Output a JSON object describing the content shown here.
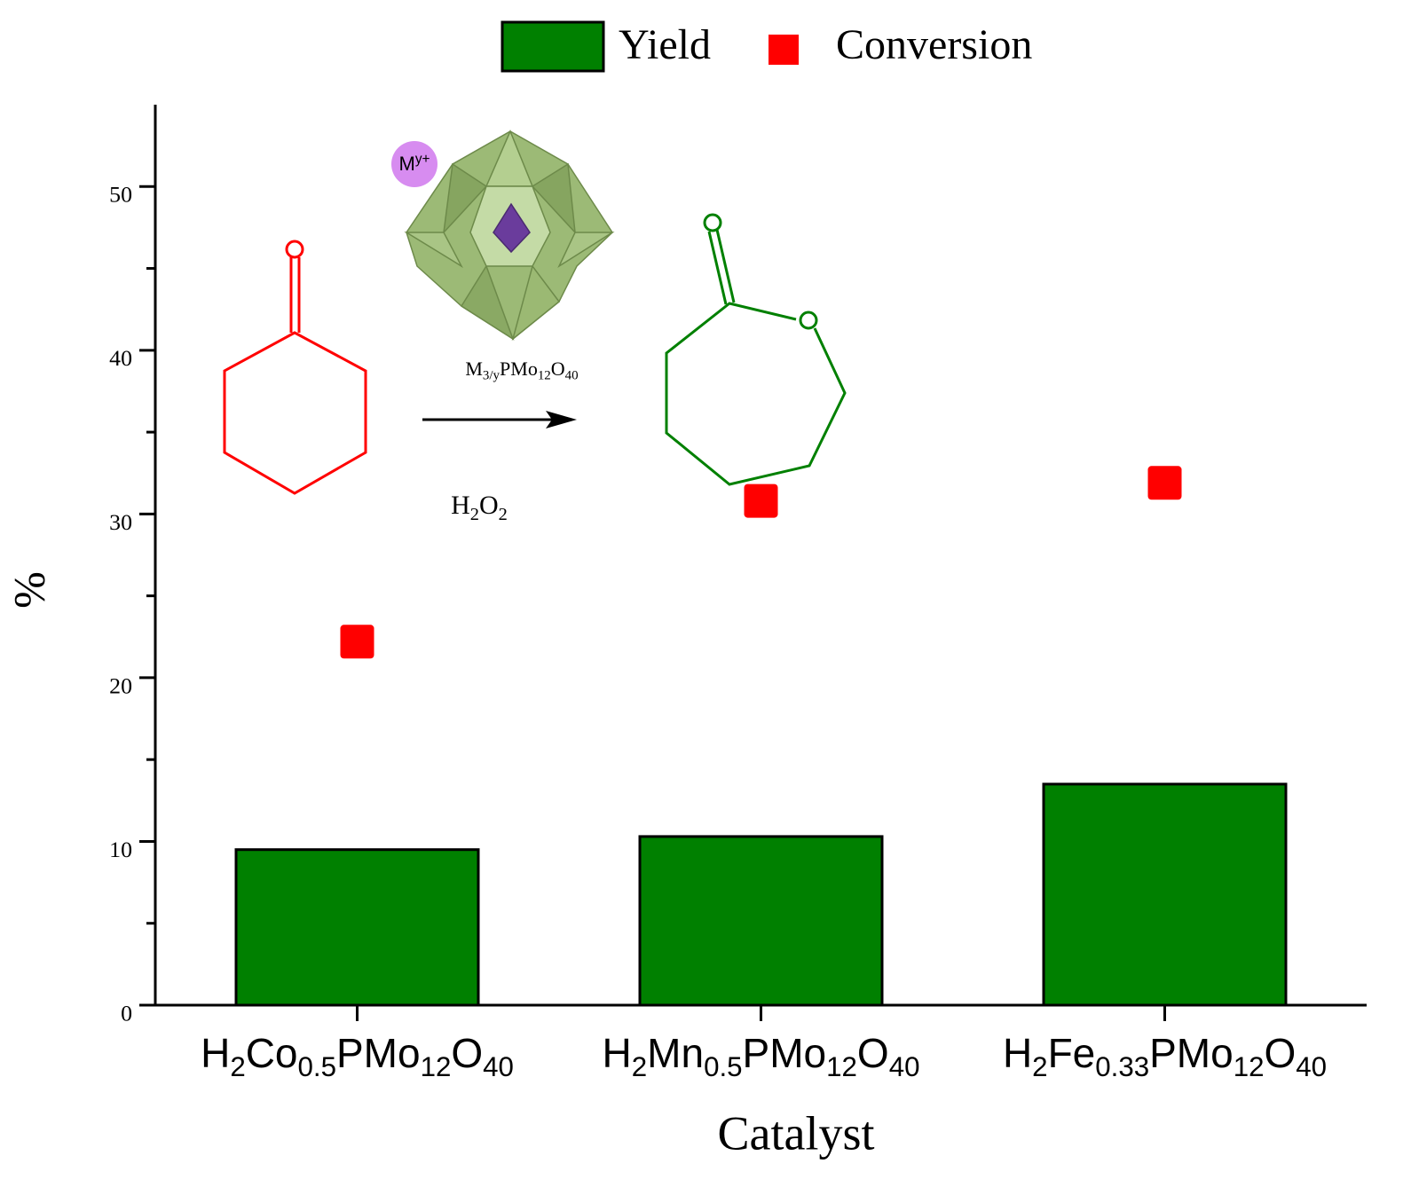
{
  "chart_data": {
    "type": "bar_scatter",
    "x_label": "Catalyst",
    "y_label": "%",
    "categories": [
      "H2Co0.5PMo12O40",
      "H2Mn0.5PMo12O40",
      "H2Fe0.33PMo12O40"
    ],
    "series": [
      {
        "name": "Yield",
        "type": "bar",
        "color": "#008000",
        "values": [
          9.5,
          10.3,
          13.5
        ]
      },
      {
        "name": "Conversion",
        "type": "scatter",
        "color": "#ff0000",
        "values": [
          22.2,
          30.8,
          31.9
        ]
      }
    ],
    "ylim": [
      0,
      55
    ],
    "yticks": [
      0,
      10,
      20,
      30,
      40,
      50
    ],
    "minor_yticks": [
      5,
      15,
      25,
      35,
      45
    ],
    "legend": "top",
    "annotations": [
      "My+",
      "M3/yPMo12O40",
      "H2O2"
    ]
  }
}
